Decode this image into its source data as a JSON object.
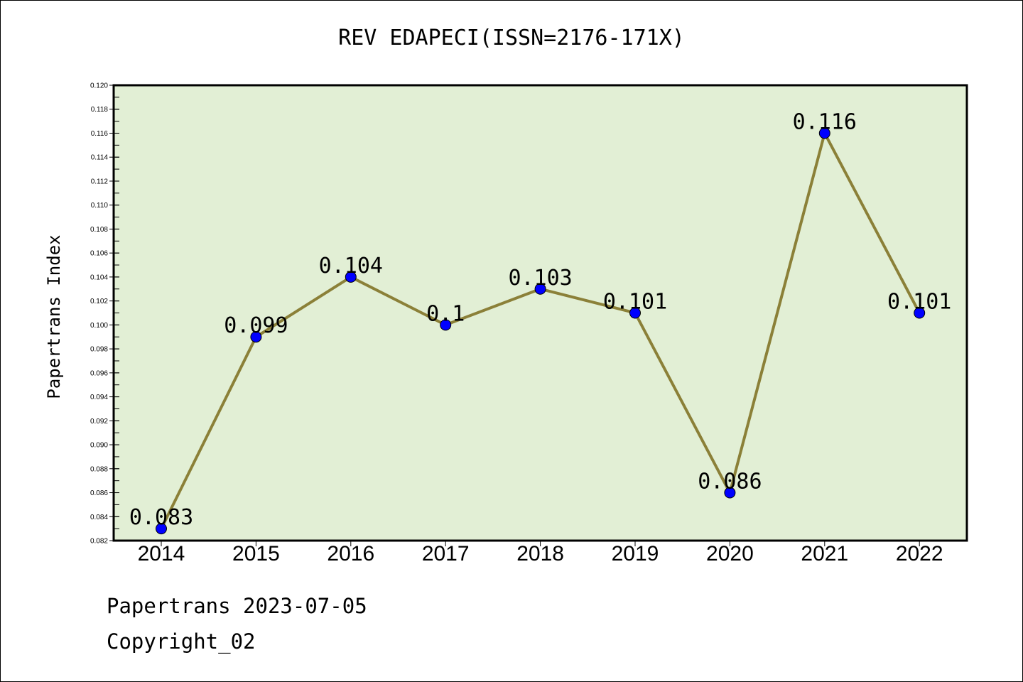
{
  "chart_data": {
    "type": "line",
    "title": "REV EDAPECI(ISSN=2176-171X)",
    "ylabel": "Papertrans Index",
    "xlabel": "",
    "categories": [
      "2014",
      "2015",
      "2016",
      "2017",
      "2018",
      "2019",
      "2020",
      "2021",
      "2022"
    ],
    "series": [
      {
        "values": [
          0.083,
          0.099,
          0.104,
          0.1,
          0.103,
          0.101,
          0.086,
          0.116,
          0.101
        ],
        "data_labels": [
          "0.083",
          "0.099",
          "0.104",
          "0.1",
          "0.103",
          "0.101",
          "0.086",
          "0.116",
          "0.101"
        ]
      }
    ],
    "ylim": [
      0.082,
      0.12
    ],
    "yticks": [
      "0.082",
      "0.084",
      "0.086",
      "0.088",
      "0.090",
      "0.092",
      "0.094",
      "0.096",
      "0.098",
      "0.100",
      "0.102",
      "0.104",
      "0.106",
      "0.108",
      "0.110",
      "0.112",
      "0.114",
      "0.116",
      "0.118",
      "0.120"
    ],
    "grid": false,
    "colors": {
      "plot_background": "#e2efd5",
      "line": "#8b8038",
      "marker": "#0000ff"
    }
  },
  "footer": {
    "line1": "Papertrans 2023-07-05",
    "line2": "Copyright_02"
  }
}
